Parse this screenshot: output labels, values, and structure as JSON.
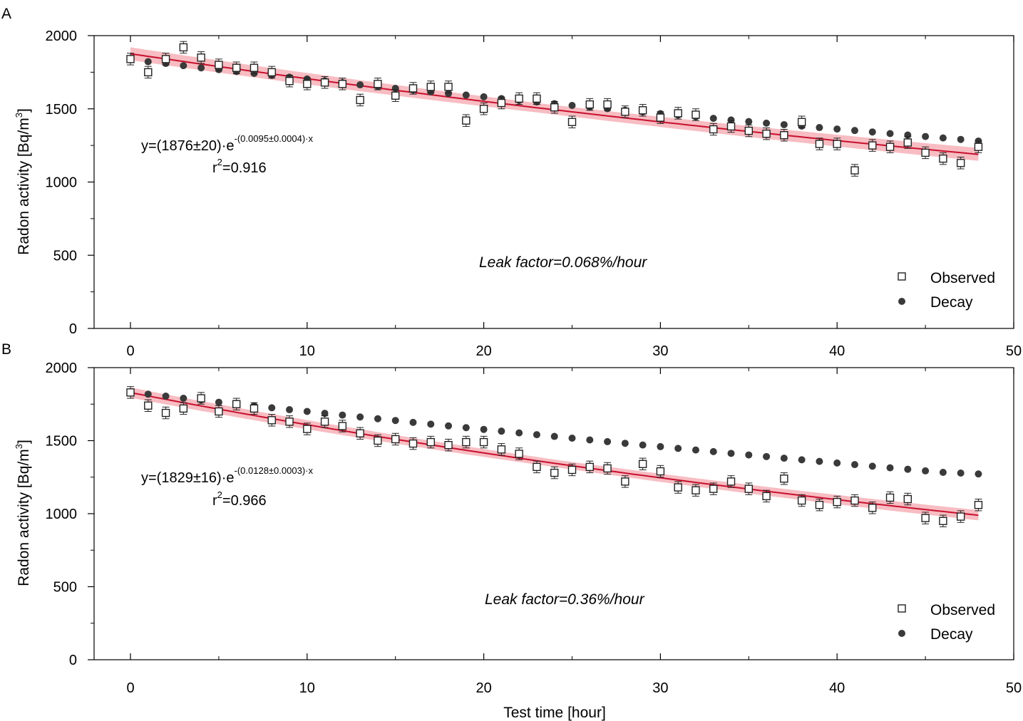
{
  "chart_data": [
    {
      "type": "scatter",
      "panel": "A",
      "xlabel": "",
      "ylabel": "Radon activity [Bq/m³]",
      "ylabel_main": "Radon activity [Bq/m",
      "ylabel_sup": "3",
      "ylabel_close": "]",
      "xlim": [
        -2,
        50
      ],
      "ylim": [
        0,
        2000
      ],
      "xticks": [
        0,
        10,
        20,
        30,
        40,
        50
      ],
      "yticks": [
        0,
        500,
        1000,
        1500,
        2000
      ],
      "xtick_labels": [
        "0",
        "10",
        "20",
        "30",
        "40",
        "50"
      ],
      "ytick_labels": [
        "0",
        "500",
        "1000",
        "1500",
        "2000"
      ],
      "equation_main": "y=(1876±20)·e",
      "equation_exp": "-(0.0095±0.0004)·x",
      "r2_prefix": "r",
      "r2_sup": "2",
      "r2_value": "=0.916",
      "leak_factor": "Leak factor=0.068%/hour",
      "fit": {
        "a": 1876,
        "b": 0.0095,
        "band": 20
      },
      "series": [
        {
          "name": "Observed",
          "marker": "open-square",
          "x": [
            0,
            1,
            2,
            3,
            4,
            5,
            6,
            7,
            8,
            9,
            10,
            11,
            12,
            13,
            14,
            15,
            16,
            17,
            18,
            19,
            20,
            21,
            22,
            23,
            24,
            25,
            26,
            27,
            28,
            29,
            30,
            31,
            32,
            33,
            34,
            35,
            36,
            37,
            38,
            39,
            40,
            41,
            42,
            43,
            44,
            45,
            46,
            47,
            48
          ],
          "y": [
            1840,
            1750,
            1840,
            1920,
            1850,
            1800,
            1780,
            1780,
            1750,
            1690,
            1670,
            1680,
            1670,
            1560,
            1670,
            1590,
            1640,
            1650,
            1650,
            1420,
            1500,
            1540,
            1570,
            1570,
            1510,
            1410,
            1530,
            1530,
            1480,
            1490,
            1440,
            1470,
            1460,
            1360,
            1380,
            1350,
            1330,
            1320,
            1410,
            1260,
            1260,
            1080,
            1250,
            1240,
            1270,
            1200,
            1160,
            1130,
            1240
          ],
          "err": 40
        },
        {
          "name": "Decay",
          "marker": "filled-circle",
          "x": [
            0,
            1,
            2,
            3,
            4,
            5,
            6,
            7,
            8,
            9,
            10,
            11,
            12,
            13,
            14,
            15,
            16,
            17,
            18,
            19,
            20,
            21,
            22,
            23,
            24,
            25,
            26,
            27,
            28,
            29,
            30,
            31,
            32,
            33,
            34,
            35,
            36,
            37,
            38,
            39,
            40,
            41,
            42,
            43,
            44,
            45,
            46,
            47,
            48
          ],
          "y": [
            1840,
            1822,
            1810,
            1795,
            1780,
            1768,
            1755,
            1742,
            1729,
            1716,
            1704,
            1691,
            1678,
            1664,
            1653,
            1640,
            1628,
            1616,
            1605,
            1594,
            1582,
            1570,
            1558,
            1547,
            1535,
            1523,
            1512,
            1501,
            1490,
            1479,
            1467,
            1457,
            1446,
            1435,
            1424,
            1413,
            1402,
            1392,
            1382,
            1372,
            1362,
            1352,
            1342,
            1331,
            1321,
            1311,
            1301,
            1291,
            1280
          ]
        }
      ],
      "legend": [
        {
          "label": "Observed",
          "marker": "open-square"
        },
        {
          "label": "Decay",
          "marker": "filled-circle"
        }
      ],
      "legend_position": "bottom-right"
    },
    {
      "type": "scatter",
      "panel": "B",
      "xlabel": "Test time [hour]",
      "ylabel": "Radon activity [Bq/m³]",
      "ylabel_main": "Radon activity [Bq/m",
      "ylabel_sup": "3",
      "ylabel_close": "]",
      "xlim": [
        -2,
        50
      ],
      "ylim": [
        0,
        2000
      ],
      "xticks": [
        0,
        10,
        20,
        30,
        40,
        50
      ],
      "yticks": [
        0,
        500,
        1000,
        1500,
        2000
      ],
      "xtick_labels": [
        "0",
        "10",
        "20",
        "30",
        "40",
        "50"
      ],
      "ytick_labels": [
        "0",
        "500",
        "1000",
        "1500",
        "2000"
      ],
      "equation_main": "y=(1829±16)·e",
      "equation_exp": "-(0.0128±0.0003)·x",
      "r2_prefix": "r",
      "r2_sup": "2",
      "r2_value": "=0.966",
      "leak_factor": "Leak factor=0.36%/hour",
      "fit": {
        "a": 1829,
        "b": 0.0128,
        "band": 16
      },
      "series": [
        {
          "name": "Observed",
          "marker": "open-square",
          "x": [
            0,
            1,
            2,
            3,
            4,
            5,
            6,
            7,
            8,
            9,
            10,
            11,
            12,
            13,
            14,
            15,
            16,
            17,
            18,
            19,
            20,
            21,
            22,
            23,
            24,
            25,
            26,
            27,
            28,
            29,
            30,
            31,
            32,
            33,
            34,
            35,
            36,
            37,
            38,
            39,
            40,
            41,
            42,
            43,
            44,
            45,
            46,
            47,
            48
          ],
          "y": [
            1830,
            1740,
            1690,
            1720,
            1790,
            1700,
            1750,
            1720,
            1640,
            1630,
            1580,
            1630,
            1600,
            1550,
            1500,
            1510,
            1480,
            1490,
            1470,
            1490,
            1490,
            1440,
            1410,
            1320,
            1280,
            1300,
            1320,
            1310,
            1220,
            1340,
            1290,
            1180,
            1160,
            1170,
            1220,
            1170,
            1120,
            1240,
            1090,
            1060,
            1080,
            1090,
            1040,
            1110,
            1100,
            970,
            950,
            980,
            1060
          ],
          "err": 40
        },
        {
          "name": "Decay",
          "marker": "filled-circle",
          "x": [
            0,
            1,
            2,
            3,
            4,
            5,
            6,
            7,
            8,
            9,
            10,
            11,
            12,
            13,
            14,
            15,
            16,
            17,
            18,
            19,
            20,
            21,
            22,
            23,
            24,
            25,
            26,
            27,
            28,
            29,
            30,
            31,
            32,
            33,
            34,
            35,
            36,
            37,
            38,
            39,
            40,
            41,
            42,
            43,
            44,
            45,
            46,
            47,
            48
          ],
          "y": [
            1830,
            1818,
            1805,
            1790,
            1778,
            1763,
            1750,
            1738,
            1725,
            1712,
            1700,
            1687,
            1675,
            1662,
            1650,
            1638,
            1625,
            1613,
            1601,
            1589,
            1577,
            1565,
            1553,
            1541,
            1529,
            1517,
            1505,
            1493,
            1482,
            1470,
            1459,
            1447,
            1436,
            1425,
            1413,
            1402,
            1391,
            1380,
            1369,
            1358,
            1347,
            1336,
            1325,
            1314,
            1304,
            1293,
            1283,
            1278,
            1272
          ]
        }
      ],
      "legend": [
        {
          "label": "Observed",
          "marker": "open-square"
        },
        {
          "label": "Decay",
          "marker": "filled-circle"
        }
      ],
      "legend_position": "bottom-right"
    }
  ],
  "colors": {
    "fit_line": "#c8102e",
    "fit_band": "#f4a7ad",
    "observed_stroke": "#222222",
    "decay_fill": "#3a3a3a",
    "axis": "#000000"
  }
}
